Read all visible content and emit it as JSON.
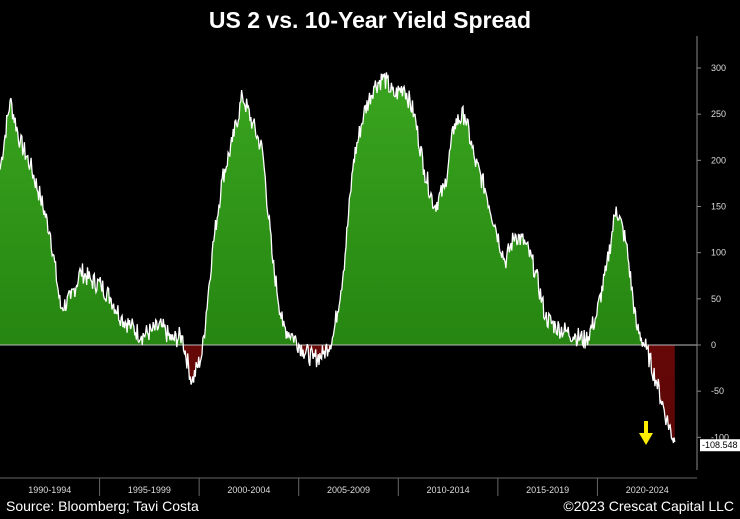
{
  "chart_data": {
    "type": "area",
    "title": "US 2 vs. 10-Year Yield Spread",
    "xlabel": "",
    "ylabel": "",
    "ylim": [
      -120,
      335
    ],
    "yticks": [
      300,
      250,
      200,
      150,
      100,
      50,
      0,
      -50,
      -100
    ],
    "x_labels": [
      "1990-1994",
      "1995-1999",
      "2000-2004",
      "2005-2009",
      "2010-2014",
      "2015-2019",
      "2020-2024"
    ],
    "xlim": [
      1990.0,
      2024.5
    ],
    "positive_color": "#1e7a0c",
    "negative_color": "#8b0c0c",
    "line_color": "#ffffff",
    "last_value_label": "-108.548",
    "last_value": -108.548,
    "x": [
      1990.0,
      1990.5,
      1991.0,
      1991.5,
      1992.0,
      1992.5,
      1993.0,
      1993.5,
      1994.0,
      1994.5,
      1995.0,
      1995.5,
      1996.0,
      1996.5,
      1997.0,
      1997.5,
      1998.0,
      1998.5,
      1999.0,
      1999.5,
      2000.0,
      2000.5,
      2001.0,
      2001.5,
      2002.0,
      2002.5,
      2003.0,
      2003.5,
      2004.0,
      2004.5,
      2005.0,
      2005.5,
      2006.0,
      2006.5,
      2007.0,
      2007.5,
      2008.0,
      2008.5,
      2009.0,
      2009.5,
      2010.0,
      2010.5,
      2011.0,
      2011.5,
      2012.0,
      2012.5,
      2013.0,
      2013.5,
      2014.0,
      2014.5,
      2015.0,
      2015.5,
      2016.0,
      2016.5,
      2017.0,
      2017.5,
      2018.0,
      2018.5,
      2019.0,
      2019.5,
      2020.0,
      2020.5,
      2021.0,
      2021.5,
      2022.0,
      2022.5,
      2023.0,
      2023.4
    ],
    "values": [
      190,
      265,
      220,
      195,
      160,
      120,
      40,
      50,
      80,
      70,
      65,
      50,
      30,
      20,
      10,
      15,
      20,
      5,
      10,
      -40,
      -10,
      100,
      180,
      220,
      270,
      240,
      210,
      90,
      20,
      10,
      -5,
      -15,
      -10,
      10,
      80,
      200,
      250,
      280,
      290,
      270,
      280,
      250,
      190,
      150,
      170,
      240,
      250,
      200,
      170,
      130,
      90,
      120,
      110,
      80,
      30,
      20,
      15,
      10,
      5,
      30,
      80,
      150,
      110,
      20,
      -5,
      -40,
      -80,
      -105
    ]
  },
  "footer": {
    "left": "Source: Bloomberg; Tavi Costa",
    "right": "©2023 Crescat Capital LLC"
  }
}
